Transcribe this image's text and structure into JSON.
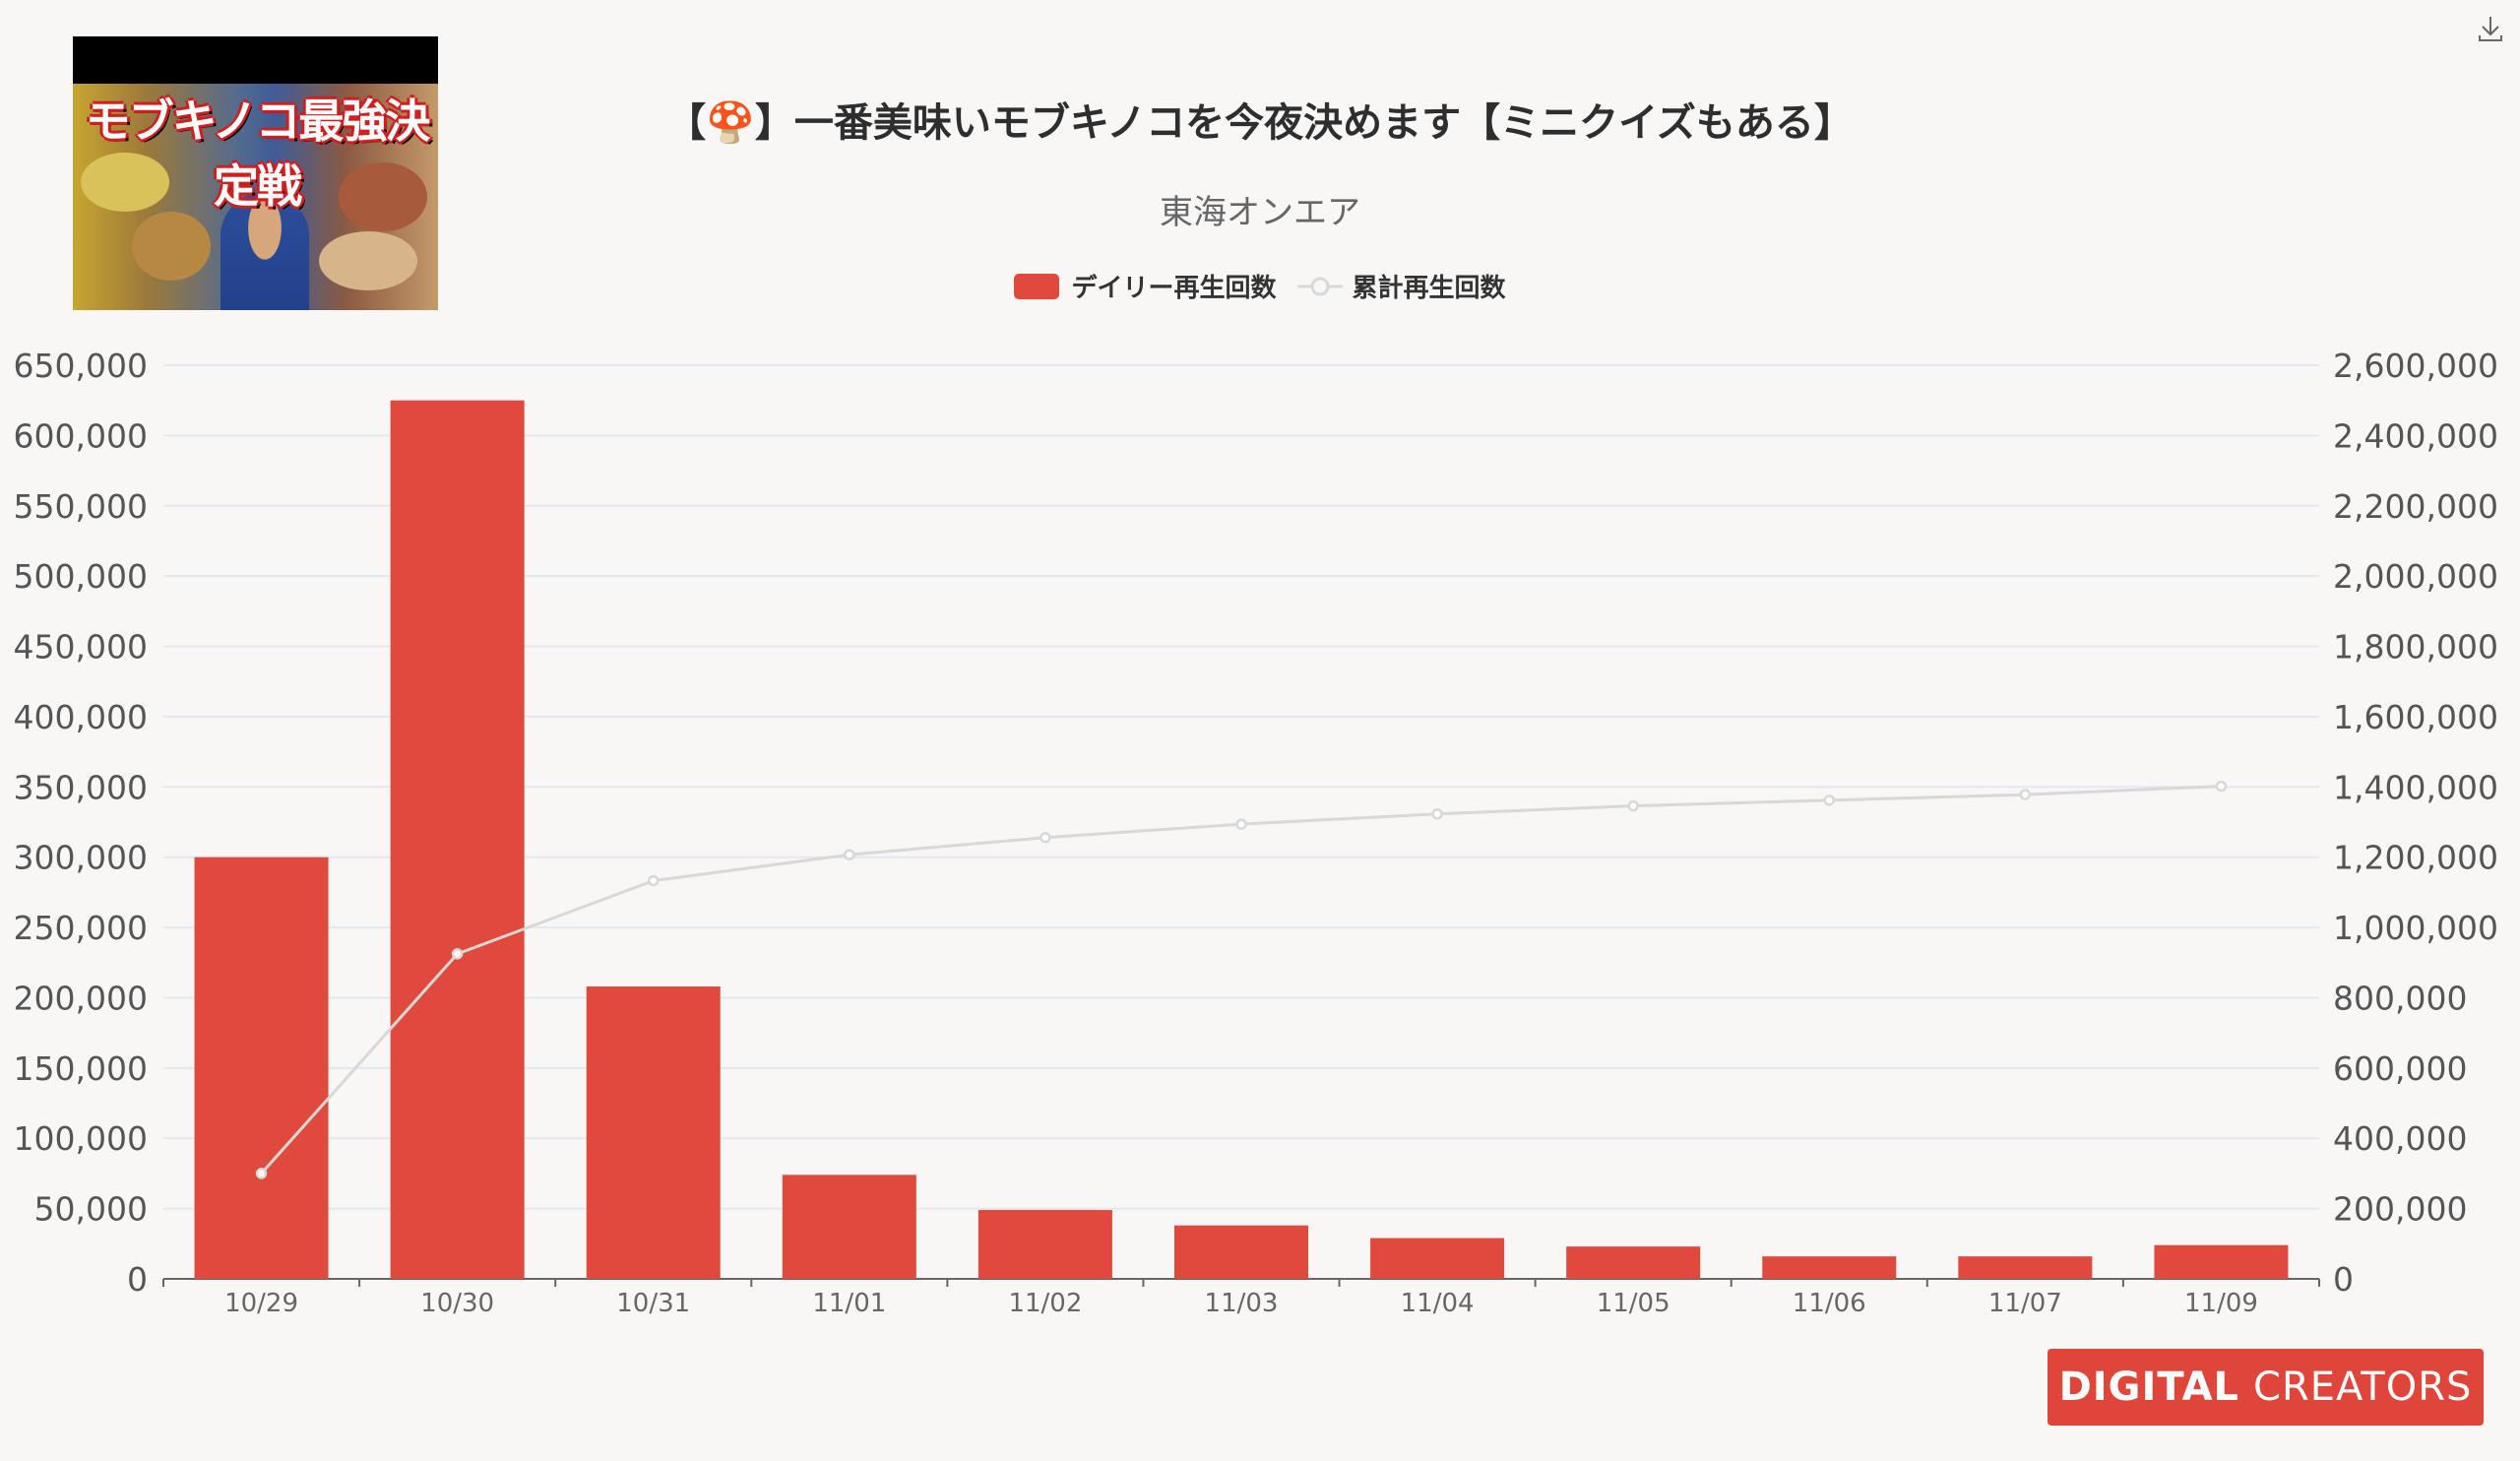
{
  "header": {
    "title": "【🍄】一番美味いモブキノコを今夜決めます【ミニクイズもある】",
    "subtitle": "東海オンエア",
    "thumbnail_text": "モブキノコ最強決定戦",
    "download_icon": "download-icon"
  },
  "legend": {
    "daily_label": "デイリー再生回数",
    "cumulative_label": "累計再生回数"
  },
  "colors": {
    "bar": "#e04a3c",
    "line": "#d8d8d8",
    "background": "#f8f7f6",
    "grid": "#e6e6ee",
    "logo_bg": "#e0453a"
  },
  "chart_data": {
    "type": "bar",
    "title": "【🍄】一番美味いモブキノコを今夜決めます【ミニクイズもある】",
    "subtitle": "東海オンエア",
    "categories": [
      "10/29",
      "10/30",
      "10/31",
      "11/01",
      "11/02",
      "11/03",
      "11/04",
      "11/05",
      "11/06",
      "11/07",
      "11/09"
    ],
    "series": [
      {
        "name": "デイリー再生回数",
        "type": "bar",
        "axis": "left",
        "values": [
          300000,
          625000,
          208000,
          74000,
          49000,
          38000,
          29000,
          23000,
          16000,
          16000,
          24000
        ]
      },
      {
        "name": "累計再生回数",
        "type": "line",
        "axis": "right",
        "values": [
          300000,
          925000,
          1133000,
          1207000,
          1256000,
          1294000,
          1323000,
          1346000,
          1362000,
          1378000,
          1402000
        ]
      }
    ],
    "y_left": {
      "min": 0,
      "max": 650000,
      "ticks": [
        "0",
        "50,000",
        "100,000",
        "150,000",
        "200,000",
        "250,000",
        "300,000",
        "350,000",
        "400,000",
        "450,000",
        "500,000",
        "550,000",
        "600,000",
        "650,000"
      ]
    },
    "y_right": {
      "min": 0,
      "max": 2600000,
      "ticks": [
        "0",
        "200,000",
        "400,000",
        "600,000",
        "800,000",
        "1,000,000",
        "1,200,000",
        "1,400,000",
        "1,600,000",
        "1,800,000",
        "2,000,000",
        "2,200,000",
        "2,400,000",
        "2,600,000"
      ]
    },
    "grid": true,
    "legend_position": "top-center"
  },
  "logo": {
    "bold": "DIGITAL",
    "thin": "CREATORS"
  }
}
